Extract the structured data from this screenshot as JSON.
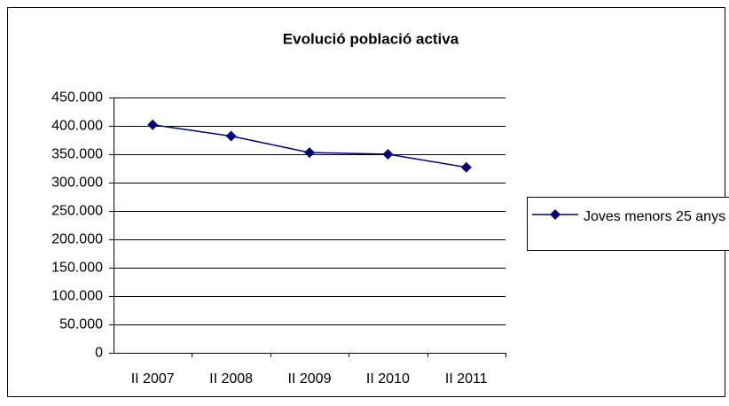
{
  "chart_data": {
    "type": "line",
    "title": "Evolució població activa",
    "categories": [
      "II 2007",
      "II 2008",
      "II 2009",
      "II 2010",
      "II 2011"
    ],
    "series": [
      {
        "name": "Joves menors 25 anys",
        "color": "#000080",
        "values": [
          402000,
          382000,
          353000,
          350000,
          327000
        ]
      }
    ],
    "ylim": [
      0,
      450000
    ],
    "yticks": [
      0,
      {
        "value": 50000,
        "label": "50.000"
      },
      {
        "value": 100000,
        "label": "100.000"
      },
      {
        "value": 150000,
        "label": "150.000"
      },
      {
        "value": 200000,
        "label": "200.000"
      },
      {
        "value": 250000,
        "label": "250.000"
      },
      {
        "value": 300000,
        "label": "300.000"
      },
      {
        "value": 350000,
        "label": "350.000"
      },
      {
        "value": 400000,
        "label": "400.000"
      },
      {
        "value": 450000,
        "label": "450.000"
      }
    ],
    "grid": true,
    "legend": "right"
  }
}
